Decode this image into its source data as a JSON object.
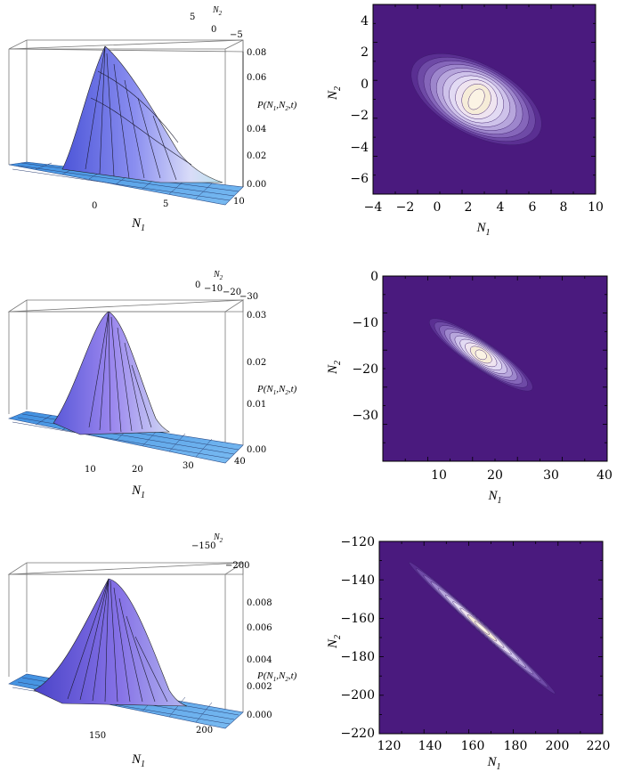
{
  "chart_data": [
    {
      "type": "surface3d",
      "xlabel": "N",
      "xlabel_sub": "1",
      "ylabel": "N",
      "ylabel_sub": "2",
      "zlabel": "P(N",
      "zlabel_sub1": "1",
      "zlabel_mid": ",N",
      "zlabel_sub2": "2",
      "zlabel_end": ",t)",
      "x_ticks": [
        "0",
        "5",
        "10"
      ],
      "y_ticks": [
        "5",
        "0",
        "−5"
      ],
      "z_ticks": [
        "0.08",
        "0.06",
        "0.04",
        "0.02",
        "0.00"
      ],
      "peak": {
        "N1": 2.5,
        "N2": -1,
        "P": 0.09
      }
    },
    {
      "type": "contour",
      "xlabel": "N",
      "xlabel_sub": "1",
      "ylabel": "N",
      "ylabel_sub": "2",
      "xlim": [
        -4,
        10
      ],
      "ylim": [
        -7,
        5
      ],
      "x_ticks": [
        "−4",
        "−2",
        "0",
        "2",
        "4",
        "6",
        "8",
        "10"
      ],
      "y_ticks": [
        "4",
        "2",
        "0",
        "−2",
        "−4",
        "−6"
      ],
      "center": [
        2.5,
        -1
      ],
      "spread": [
        4.5,
        2.2
      ],
      "tilt_deg": -28
    },
    {
      "type": "surface3d",
      "xlabel": "N",
      "xlabel_sub": "1",
      "ylabel": "N",
      "ylabel_sub": "2",
      "zlabel": "P(N",
      "zlabel_sub1": "1",
      "zlabel_mid": ",N",
      "zlabel_sub2": "2",
      "zlabel_end": ",t)",
      "x_ticks": [
        "10",
        "20",
        "30",
        "40"
      ],
      "y_ticks": [
        "0",
        "−10",
        "−20",
        "−30"
      ],
      "z_ticks": [
        "0.03",
        "0.02",
        "0.01",
        "0.00"
      ],
      "peak": {
        "N1": 17,
        "N2": -17,
        "P": 0.03
      }
    },
    {
      "type": "contour",
      "xlabel": "N",
      "xlabel_sub": "1",
      "ylabel": "N",
      "ylabel_sub": "2",
      "xlim": [
        0,
        40
      ],
      "ylim": [
        -40,
        0
      ],
      "x_ticks": [
        "10",
        "20",
        "30",
        "40"
      ],
      "y_ticks": [
        "0",
        "−10",
        "−20",
        "−30"
      ],
      "center": [
        17.5,
        -17
      ],
      "spread": [
        11,
        2.4
      ],
      "tilt_deg": -34
    },
    {
      "type": "surface3d",
      "xlabel": "N",
      "xlabel_sub": "1",
      "ylabel": "N",
      "ylabel_sub": "2",
      "zlabel": "P(N",
      "zlabel_sub1": "1",
      "zlabel_mid": ",N",
      "zlabel_sub2": "2",
      "zlabel_end": ",t)",
      "x_ticks": [
        "150",
        "200"
      ],
      "y_ticks": [
        "−150",
        "−200"
      ],
      "z_ticks": [
        "0.008",
        "0.006",
        "0.004",
        "0.002",
        "0.000"
      ],
      "peak": {
        "N1": 165,
        "N2": -165,
        "P": 0.0095
      }
    },
    {
      "type": "contour",
      "xlabel": "N",
      "xlabel_sub": "1",
      "ylabel": "N",
      "ylabel_sub": "2",
      "xlim": [
        120,
        220
      ],
      "ylim": [
        -220,
        -120
      ],
      "x_ticks": [
        "120",
        "140",
        "160",
        "180",
        "200",
        "220"
      ],
      "y_ticks": [
        "−120",
        "−140",
        "−160",
        "−180",
        "−200",
        "−220"
      ],
      "center": [
        166,
        -165
      ],
      "spread": [
        44,
        2.3
      ],
      "tilt_deg": -42
    }
  ]
}
